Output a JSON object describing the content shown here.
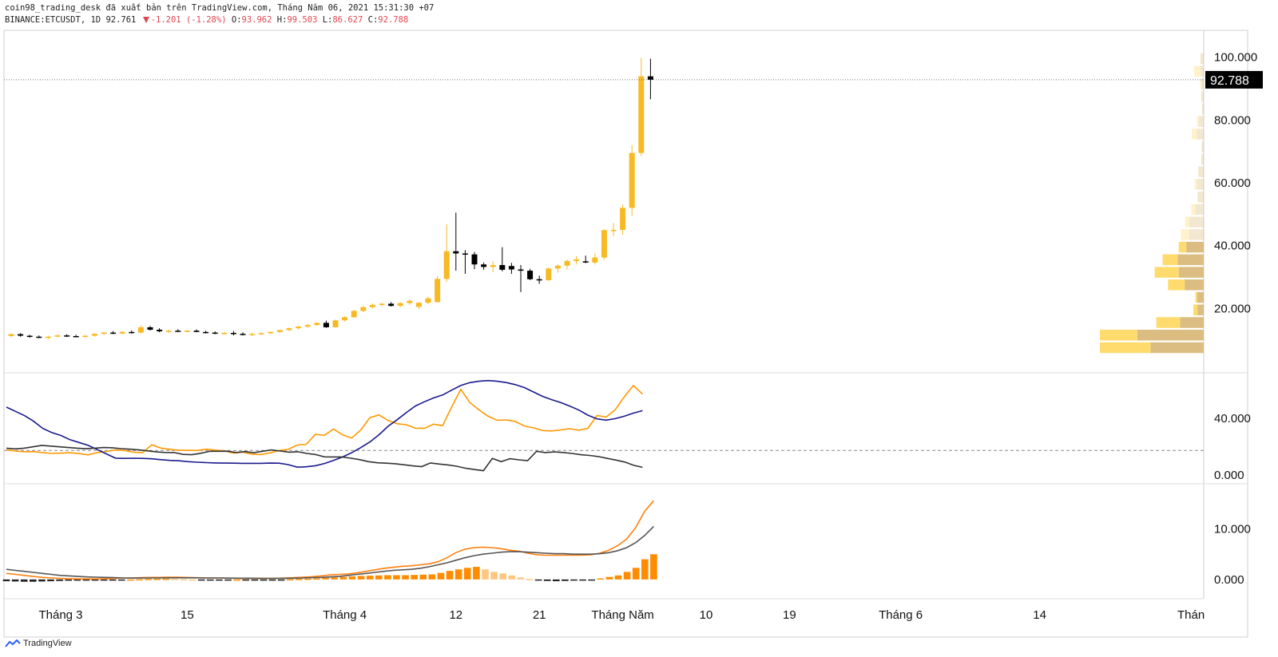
{
  "header": {
    "line1": "coin98_trading_desk đã xuất bản trên TradingView.com, Tháng Năm 06, 2021 15:31:30 +07",
    "symbol": "BINANCE:ETCUSDT, 1D",
    "last": "92.761",
    "change": "-1.201 (-1.28%)",
    "o_label": "O:",
    "o_val": "93.962",
    "h_label": "H:",
    "h_val": "99.503",
    "l_label": "L:",
    "l_val": "86.627",
    "c_label": "C:",
    "c_val": "92.788"
  },
  "footer": {
    "brand": "TradingView"
  },
  "colors": {
    "up": "#f7b924",
    "down": "#000000",
    "ma_orange": "#ff9800",
    "ma_navy": "#1a1a8c",
    "ma_dark": "#333333",
    "macd_orange": "#ff7f0e",
    "macd_gray": "#555555",
    "hist_strong": "#ff8c00",
    "hist_light": "#ffc680",
    "hist_dark": "#222222",
    "vp_up": "#ffd966",
    "vp_down": "#d9b97a"
  },
  "chart_data": [
    {
      "type": "candlestick",
      "title": "BINANCE:ETCUSDT, 1D",
      "x_tick_labels": [
        "Tháng 3",
        "15",
        "Tháng 4",
        "12",
        "21",
        "Tháng Năm",
        "10",
        "19",
        "Tháng 6",
        "14",
        "Thán"
      ],
      "y_tick_labels": [
        "100.000",
        "80.000",
        "60.000",
        "40.000",
        "20.000"
      ],
      "ylim": [
        0,
        106
      ],
      "last_price_label": "92.788",
      "candles": [
        [
          11.2,
          12.0,
          10.8,
          11.8
        ],
        [
          11.8,
          12.1,
          11.0,
          11.3
        ],
        [
          11.3,
          11.6,
          10.7,
          11.0
        ],
        [
          11.0,
          11.4,
          10.5,
          10.7
        ],
        [
          10.7,
          11.3,
          10.2,
          11.0
        ],
        [
          11.0,
          11.8,
          10.8,
          11.4
        ],
        [
          11.4,
          11.8,
          10.9,
          11.2
        ],
        [
          11.2,
          11.6,
          10.8,
          11.0
        ],
        [
          11.0,
          11.5,
          10.7,
          11.3
        ],
        [
          11.3,
          12.1,
          11.0,
          11.9
        ],
        [
          11.9,
          12.6,
          11.5,
          12.3
        ],
        [
          12.3,
          12.8,
          11.8,
          12.0
        ],
        [
          12.0,
          12.8,
          11.7,
          12.5
        ],
        [
          12.5,
          13.0,
          12.0,
          12.3
        ],
        [
          12.3,
          14.6,
          12.0,
          14.0
        ],
        [
          14.0,
          14.4,
          13.0,
          13.2
        ],
        [
          13.2,
          13.7,
          12.4,
          12.7
        ],
        [
          12.7,
          13.3,
          12.2,
          12.9
        ],
        [
          12.9,
          13.4,
          12.5,
          12.7
        ],
        [
          12.7,
          13.1,
          12.3,
          12.9
        ],
        [
          12.9,
          13.3,
          12.4,
          12.5
        ],
        [
          12.5,
          12.9,
          12.0,
          12.3
        ],
        [
          12.3,
          12.7,
          11.8,
          12.0
        ],
        [
          12.0,
          12.6,
          11.7,
          12.2
        ],
        [
          12.2,
          12.8,
          11.4,
          11.9
        ],
        [
          11.9,
          12.4,
          11.4,
          11.7
        ],
        [
          11.7,
          12.3,
          11.2,
          11.9
        ],
        [
          11.9,
          12.4,
          11.5,
          12.1
        ],
        [
          12.1,
          12.7,
          11.8,
          12.5
        ],
        [
          12.5,
          13.3,
          12.2,
          13.1
        ],
        [
          13.1,
          13.9,
          12.8,
          13.7
        ],
        [
          13.7,
          14.5,
          13.3,
          14.2
        ],
        [
          14.2,
          15.0,
          13.8,
          14.7
        ],
        [
          14.7,
          15.6,
          14.4,
          15.4
        ],
        [
          15.4,
          16.1,
          13.8,
          14.0
        ],
        [
          14.0,
          16.5,
          13.9,
          16.2
        ],
        [
          16.2,
          17.5,
          15.8,
          17.2
        ],
        [
          17.2,
          19.5,
          17.0,
          19.2
        ],
        [
          19.2,
          20.8,
          18.8,
          20.4
        ],
        [
          20.4,
          21.6,
          19.9,
          21.1
        ],
        [
          21.1,
          21.8,
          20.6,
          21.5
        ],
        [
          21.5,
          22.0,
          20.6,
          20.8
        ],
        [
          20.8,
          22.0,
          20.4,
          21.7
        ],
        [
          21.7,
          22.9,
          21.2,
          22.4
        ],
        [
          20.5,
          22.0,
          19.8,
          21.8
        ],
        [
          21.8,
          23.7,
          21.4,
          23.2
        ],
        [
          22.0,
          30.3,
          21.8,
          29.4
        ],
        [
          29.4,
          46.8,
          28.5,
          38.2
        ],
        [
          38.2,
          50.5,
          32.0,
          37.5
        ],
        [
          37.5,
          38.6,
          31.0,
          37.2
        ],
        [
          37.2,
          38.0,
          32.5,
          34.0
        ],
        [
          34.0,
          34.6,
          32.3,
          33.2
        ],
        [
          33.2,
          35.0,
          31.5,
          33.8
        ],
        [
          33.8,
          39.5,
          31.8,
          32.3
        ],
        [
          33.5,
          34.5,
          31.0,
          32.4
        ],
        [
          32.4,
          33.8,
          25.2,
          32.0
        ],
        [
          32.0,
          32.6,
          29.0,
          29.3
        ],
        [
          29.3,
          30.4,
          27.8,
          28.9
        ],
        [
          29.0,
          33.0,
          28.7,
          32.7
        ],
        [
          32.7,
          34.0,
          31.4,
          33.6
        ],
        [
          33.6,
          35.6,
          32.4,
          35.1
        ],
        [
          35.1,
          36.7,
          34.0,
          35.6
        ],
        [
          35.0,
          36.8,
          34.4,
          34.6
        ],
        [
          34.6,
          37.5,
          34.0,
          36.2
        ],
        [
          36.2,
          45.3,
          35.5,
          44.9
        ],
        [
          44.9,
          47.2,
          43.0,
          45.0
        ],
        [
          45.0,
          53.0,
          43.5,
          52.0
        ],
        [
          52.0,
          72.0,
          49.5,
          69.5
        ],
        [
          69.5,
          99.8,
          68.5,
          93.9
        ],
        [
          93.9,
          99.5,
          86.6,
          92.8
        ]
      ],
      "volume_profile": [
        {
          "price": 99.5,
          "up": 0,
          "down": 8
        },
        {
          "price": 95.5,
          "up": 15,
          "down": 8
        },
        {
          "price": 91.5,
          "up": 3,
          "down": 6
        },
        {
          "price": 87.5,
          "up": 0,
          "down": 6
        },
        {
          "price": 83.5,
          "up": 0,
          "down": 4
        },
        {
          "price": 79.5,
          "up": 4,
          "down": 12
        },
        {
          "price": 75.5,
          "up": 12,
          "down": 17
        },
        {
          "price": 71.5,
          "up": 0,
          "down": 5
        },
        {
          "price": 67.5,
          "up": 0,
          "down": 6
        },
        {
          "price": 63.5,
          "up": 0,
          "down": 13
        },
        {
          "price": 59.5,
          "up": 6,
          "down": 16
        },
        {
          "price": 55.5,
          "up": 0,
          "down": 15
        },
        {
          "price": 51.5,
          "up": 10,
          "down": 20
        },
        {
          "price": 47.5,
          "up": 10,
          "down": 35
        },
        {
          "price": 43.5,
          "up": 20,
          "down": 35
        },
        {
          "price": 39.5,
          "up": 18,
          "down": 42
        },
        {
          "price": 35.5,
          "up": 36,
          "down": 63
        },
        {
          "price": 31.5,
          "up": 58,
          "down": 60
        },
        {
          "price": 27.5,
          "up": 40,
          "down": 46
        },
        {
          "price": 23.5,
          "up": 4,
          "down": 16
        },
        {
          "price": 19.5,
          "up": 10,
          "down": 15
        },
        {
          "price": 15.5,
          "up": 57,
          "down": 57
        },
        {
          "price": 11.5,
          "up": 90,
          "down": 160
        },
        {
          "price": 7.5,
          "up": 122,
          "down": 128
        }
      ]
    },
    {
      "type": "line",
      "title": "",
      "y_tick_labels": [
        "40.000",
        "0.000"
      ],
      "ylim": [
        -5,
        70
      ],
      "dashed_level": 17.4,
      "series": [
        {
          "color": "#ff9800",
          "values": [
            17.8,
            17.0,
            16.5,
            16.6,
            15.9,
            15.3,
            15.5,
            15.8,
            15.2,
            14.3,
            15.9,
            16.7,
            17.8,
            17.4,
            16.2,
            15.8,
            21.4,
            19.1,
            18.2,
            17.6,
            17.5,
            17.4,
            18.3,
            17.6,
            17.1,
            15.5,
            16.2,
            14.8,
            14.5,
            15.7,
            17.4,
            18.2,
            21.2,
            21.8,
            28.8,
            28.1,
            32.5,
            28.4,
            26.2,
            31.9,
            40.6,
            42.5,
            38.6,
            36.3,
            35.6,
            33.2,
            33.0,
            36.0,
            34.9,
            48.2,
            60.5,
            51.3,
            46.1,
            41.6,
            38.7,
            39.0,
            37.9,
            34.7,
            33.4,
            31.5,
            31.2,
            31.9,
            32.8,
            31.7,
            33.1,
            42.1,
            41.0,
            46.2,
            55.3,
            63.3,
            57.2
          ]
        },
        {
          "color": "#1a1a8c",
          "values": [
            48.0,
            45.0,
            42.0,
            38.0,
            33.0,
            30.0,
            28.0,
            25.0,
            23.0,
            21.0,
            18.0,
            15.0,
            12.0,
            11.8,
            11.9,
            11.8,
            11.5,
            10.9,
            10.4,
            10.1,
            9.5,
            9.1,
            8.8,
            8.6,
            8.5,
            8.4,
            8.3,
            8.3,
            8.3,
            8.5,
            8.4,
            7.4,
            5.6,
            5.9,
            6.6,
            8.2,
            10.4,
            12.8,
            15.8,
            19.4,
            23.4,
            28.5,
            34.5,
            39.1,
            44.1,
            48.8,
            51.8,
            54.5,
            56.6,
            60.0,
            63.3,
            65.3,
            66.3,
            66.8,
            66.3,
            65.4,
            63.9,
            61.8,
            58.7,
            55.6,
            53.3,
            51.2,
            48.7,
            45.9,
            42.3,
            39.7,
            38.8,
            39.9,
            41.6,
            43.8,
            45.5
          ]
        },
        {
          "color": "#333333",
          "values": [
            19.0,
            18.5,
            19.0,
            20.0,
            21.0,
            20.5,
            20.0,
            19.5,
            19.0,
            18.6,
            19.0,
            19.5,
            19.3,
            18.7,
            18.3,
            17.8,
            17.1,
            16.4,
            16.0,
            15.9,
            14.6,
            14.4,
            15.4,
            16.8,
            16.8,
            16.9,
            16.0,
            16.6,
            15.8,
            16.8,
            17.8,
            17.0,
            16.2,
            16.5,
            15.3,
            14.5,
            12.9,
            12.8,
            12.8,
            11.9,
            10.9,
            9.5,
            8.7,
            8.4,
            8.0,
            7.3,
            6.5,
            6.0,
            8.6,
            7.8,
            7.2,
            6.2,
            4.8,
            3.9,
            3.1,
            11.8,
            9.5,
            11.6,
            10.8,
            10.2,
            16.8,
            15.9,
            16.4,
            16.0,
            15.3,
            14.4,
            13.9,
            13.1,
            11.8,
            10.6,
            9.2,
            6.9,
            5.5
          ]
        }
      ]
    },
    {
      "type": "bar+line",
      "title": "",
      "y_tick_labels": [
        "10.000",
        "0.000"
      ],
      "ylim": [
        -3.5,
        18
      ],
      "histogram": [
        -0.35,
        -0.4,
        -0.45,
        -0.45,
        -0.4,
        -0.35,
        -0.3,
        -0.25,
        -0.2,
        -0.15,
        -0.1,
        -0.08,
        -0.05,
        -0.03,
        0.0,
        0.05,
        0.1,
        0.12,
        0.15,
        0.1,
        0.05,
        0.0,
        -0.05,
        -0.08,
        -0.1,
        -0.05,
        0.0,
        -0.02,
        -0.05,
        -0.05,
        -0.03,
        -0.02,
        0.05,
        0.1,
        0.15,
        0.2,
        0.3,
        0.4,
        0.5,
        0.6,
        0.7,
        0.75,
        0.8,
        0.85,
        0.85,
        0.85,
        0.9,
        0.95,
        1.0,
        1.3,
        1.7,
        2.0,
        2.3,
        2.5,
        2.0,
        1.5,
        1.2,
        0.8,
        0.4,
        0.1,
        -0.2,
        -0.3,
        -0.35,
        -0.3,
        -0.2,
        -0.15,
        -0.1,
        0.2,
        0.5,
        0.8,
        1.5,
        2.3,
        4.0,
        5.0
      ],
      "series": [
        {
          "color": "#ff7f0e",
          "values": [
            1.2,
            1.0,
            0.8,
            0.6,
            0.4,
            0.3,
            0.2,
            0.15,
            0.1,
            0.1,
            0.1,
            0.15,
            0.2,
            0.3,
            0.3,
            0.35,
            0.4,
            0.4,
            0.45,
            0.45,
            0.4,
            0.35,
            0.3,
            0.3,
            0.3,
            0.25,
            0.2,
            0.2,
            0.2,
            0.2,
            0.25,
            0.3,
            0.35,
            0.45,
            0.55,
            0.7,
            0.9,
            1.0,
            1.1,
            1.3,
            1.6,
            1.9,
            2.2,
            2.4,
            2.6,
            2.7,
            2.9,
            3.1,
            3.5,
            4.3,
            5.3,
            6.0,
            6.3,
            6.4,
            6.3,
            6.1,
            5.8,
            5.6,
            5.2,
            4.9,
            4.8,
            4.8,
            4.8,
            4.8,
            4.8,
            4.9,
            5.2,
            5.8,
            6.7,
            8.0,
            10.3,
            13.5,
            15.6
          ]
        },
        {
          "color": "#555555",
          "values": [
            2.0,
            1.8,
            1.6,
            1.4,
            1.2,
            1.0,
            0.8,
            0.7,
            0.6,
            0.5,
            0.45,
            0.4,
            0.35,
            0.3,
            0.28,
            0.28,
            0.29,
            0.3,
            0.32,
            0.33,
            0.33,
            0.32,
            0.3,
            0.3,
            0.3,
            0.27,
            0.25,
            0.24,
            0.23,
            0.22,
            0.22,
            0.23,
            0.25,
            0.3,
            0.35,
            0.4,
            0.5,
            0.6,
            0.8,
            1.0,
            1.2,
            1.4,
            1.6,
            1.8,
            1.9,
            2.0,
            2.2,
            2.5,
            2.9,
            3.3,
            3.8,
            4.3,
            4.7,
            5.0,
            5.2,
            5.4,
            5.5,
            5.5,
            5.4,
            5.3,
            5.2,
            5.1,
            5.1,
            5.0,
            5.0,
            5.0,
            5.1,
            5.3,
            5.7,
            6.3,
            7.3,
            8.7,
            10.5
          ]
        }
      ]
    }
  ]
}
